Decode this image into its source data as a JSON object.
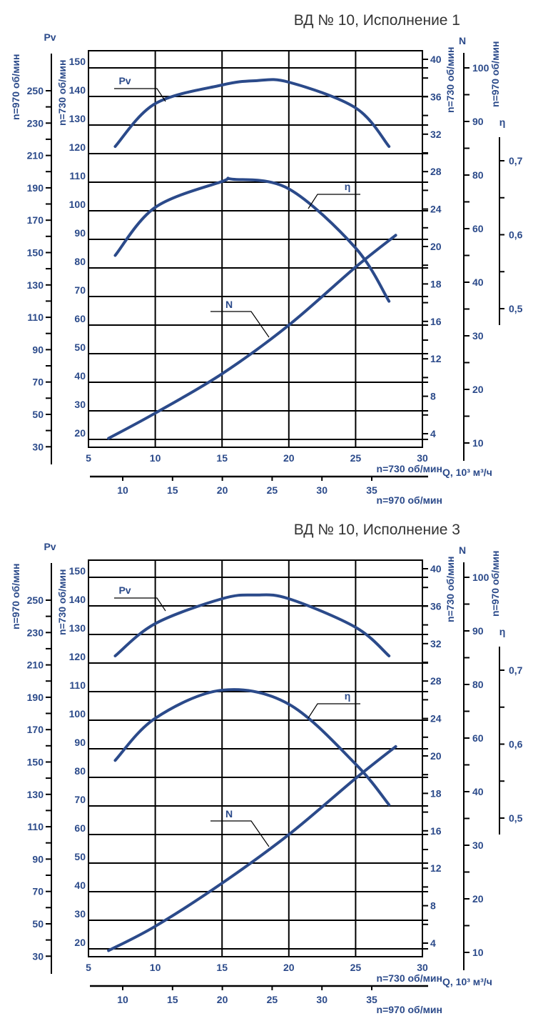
{
  "colors": {
    "curve": "#2b4a8a",
    "label": "#2b4a8a",
    "grid": "#000000",
    "title": "#333333"
  },
  "chart_data": [
    {
      "type": "line",
      "title": "ВД  № 10, Исполнение 1",
      "grid": true,
      "x": {
        "label": "Q, 10³ м³/ч",
        "speed_label": "n=730 об/мин",
        "ticks": [
          5,
          10,
          15,
          20,
          25,
          30
        ],
        "range": [
          5,
          30
        ]
      },
      "x970": {
        "speed_label": "n=970 об/мин",
        "ticks": [
          10,
          15,
          20,
          25,
          30,
          35
        ]
      },
      "y_pv": {
        "label": "Pv",
        "speed730_label": "n=730 об/мин",
        "speed970_label": "n=970 об/мин",
        "ticks730": [
          150,
          140,
          130,
          120,
          110,
          100,
          90,
          80,
          70,
          60,
          50,
          40,
          30,
          20
        ],
        "ticks970": [
          250,
          230,
          210,
          190,
          170,
          150,
          130,
          110,
          90,
          70,
          50,
          30
        ]
      },
      "y_n": {
        "label": "N",
        "speed730_label": "n=730 об/мин",
        "speed970_label": "n=970 об/мин",
        "ticks730": [
          40,
          36,
          32,
          28,
          24,
          20,
          18,
          16,
          12,
          8,
          4
        ],
        "ticks970": [
          100,
          90,
          80,
          60,
          40,
          30,
          20,
          10
        ]
      },
      "y_eta": {
        "label": "η",
        "ticks": [
          "0,7",
          "0,6",
          "0,5"
        ],
        "values": [
          0.7,
          0.6,
          0.5
        ]
      },
      "series": [
        {
          "name": "Pv",
          "axis": "pv",
          "x": [
            7,
            10,
            15,
            17.5,
            20,
            25,
            27.5
          ],
          "y": [
            122.5,
            137.5,
            144,
            145.5,
            145,
            136,
            122.5
          ]
        },
        {
          "name": "η",
          "axis": "eta",
          "x": [
            7,
            10,
            15,
            15.8,
            20,
            25,
            27.5
          ],
          "y": [
            0.572,
            0.637,
            0.672,
            0.675,
            0.662,
            0.582,
            0.51
          ]
        },
        {
          "name": "N",
          "axis": "n",
          "x": [
            6.5,
            10,
            15,
            20,
            25,
            28
          ],
          "y": [
            3.5,
            6.2,
            10.4,
            15.6,
            18.9,
            21.2
          ]
        }
      ]
    },
    {
      "type": "line",
      "title": "ВД № 10, Исполнение 3",
      "grid": true,
      "x": {
        "label": "Q, 10³ м³/ч",
        "speed_label": "n=730 об/мин",
        "ticks": [
          5,
          10,
          15,
          20,
          25,
          30
        ],
        "range": [
          5,
          30
        ]
      },
      "x970": {
        "speed_label": "n=970 об/мин",
        "ticks": [
          10,
          15,
          20,
          25,
          30,
          35
        ]
      },
      "y_pv": {
        "label": "Pv",
        "speed730_label": "n=730 об/мин",
        "speed970_label": "n=970 об/мин",
        "ticks730": [
          150,
          140,
          130,
          120,
          110,
          100,
          90,
          80,
          70,
          60,
          50,
          40,
          30,
          20
        ],
        "ticks970": [
          250,
          230,
          210,
          190,
          170,
          150,
          130,
          110,
          90,
          70,
          50,
          30
        ]
      },
      "y_n": {
        "label": "N",
        "speed730_label": "n=730 об/мин",
        "speed970_label": "n=970 об/мин",
        "ticks730": [
          40,
          36,
          32,
          28,
          24,
          20,
          18,
          16,
          12,
          8,
          4
        ],
        "ticks970": [
          100,
          90,
          80,
          60,
          40,
          30,
          20,
          10
        ]
      },
      "y_eta": {
        "label": "η",
        "ticks": [
          "0,7",
          "0,6",
          "0,5"
        ],
        "values": [
          0.7,
          0.6,
          0.5
        ]
      },
      "series": [
        {
          "name": "Pv",
          "axis": "pv",
          "x": [
            7,
            10,
            15,
            17.5,
            20,
            25,
            27.5
          ],
          "y": [
            122.5,
            133.8,
            142.5,
            143.8,
            142.5,
            132.5,
            122.5
          ]
        },
        {
          "name": "η",
          "axis": "eta",
          "x": [
            7,
            10,
            15,
            20,
            25,
            27.5
          ],
          "y": [
            0.578,
            0.635,
            0.673,
            0.654,
            0.573,
            0.518
          ]
        },
        {
          "name": "N",
          "axis": "n",
          "x": [
            6.5,
            10,
            15,
            20,
            25,
            28
          ],
          "y": [
            3.2,
            5.8,
            10.4,
            15.6,
            18.8,
            21.0
          ]
        }
      ]
    }
  ]
}
